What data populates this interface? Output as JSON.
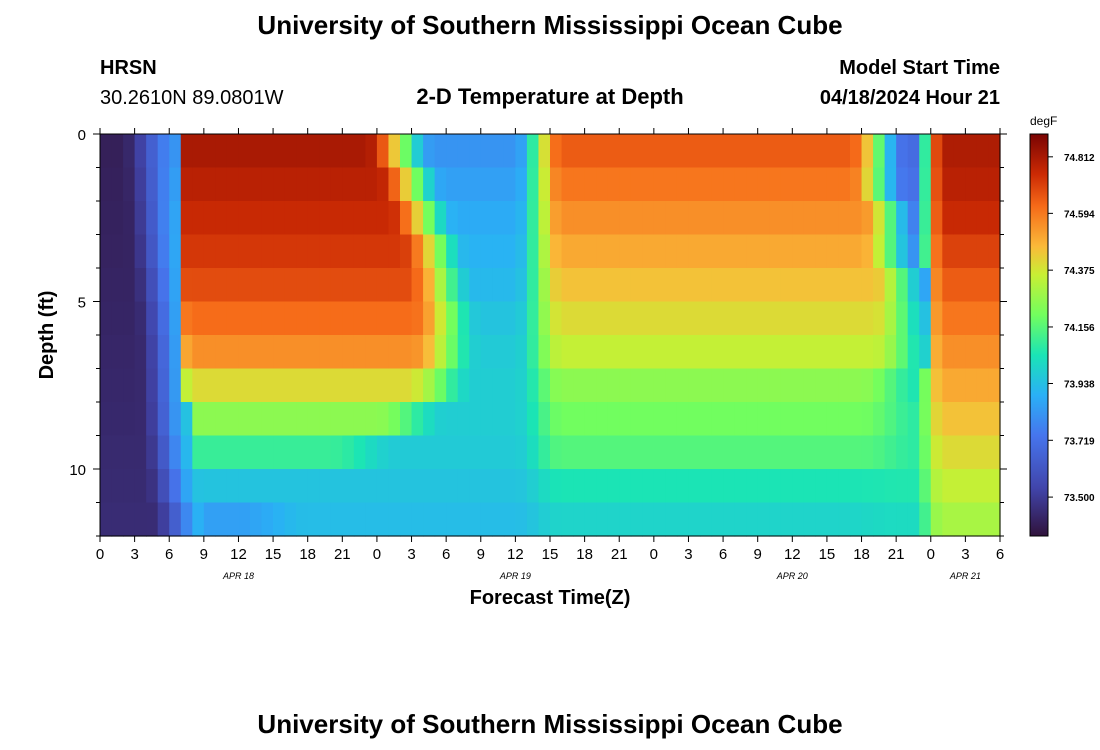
{
  "header": {
    "title": "University of Southern Mississippi Ocean Cube",
    "station": "HRSN",
    "coordinates": "30.2610N  89.0801W",
    "plot_title": "2-D Temperature at Depth",
    "model_start_label": "Model Start Time",
    "model_start_value": "04/18/2024 Hour 21"
  },
  "footer": {
    "title": "University of Southern Mississippi Ocean Cube"
  },
  "chart_data": {
    "type": "heatmap",
    "title": "2-D Temperature at Depth",
    "xlabel": "Forecast Time(Z)",
    "ylabel": "Depth (ft)",
    "x_range_hours": [
      0,
      78
    ],
    "x_tick_labels": [
      "0",
      "3",
      "6",
      "9",
      "12",
      "15",
      "18",
      "21",
      "0",
      "3",
      "6",
      "9",
      "12",
      "15",
      "18",
      "21",
      "0",
      "3",
      "6",
      "9",
      "12",
      "15",
      "18",
      "21",
      "0",
      "3",
      "6"
    ],
    "date_labels": [
      {
        "label": "APR 18",
        "hour": 12
      },
      {
        "label": "APR 19",
        "hour": 36
      },
      {
        "label": "APR 20",
        "hour": 60
      },
      {
        "label": "APR 21",
        "hour": 75
      }
    ],
    "y_range_ft": [
      0,
      12
    ],
    "y_tick_labels": [
      "0",
      "5",
      "10"
    ],
    "y_tick_values": [
      0,
      5,
      10
    ],
    "colorbar": {
      "unit": "degF",
      "range": [
        73.35,
        74.9
      ],
      "tick_values": [
        74.812,
        74.594,
        74.375,
        74.156,
        73.938,
        73.719,
        73.5
      ],
      "tick_labels": [
        "74.812",
        "74.594",
        "74.375",
        "74.156",
        "73.938",
        "73.719",
        "73.500"
      ]
    },
    "depth_levels_ft": [
      0.5,
      1.5,
      2.5,
      3.5,
      4.5,
      5.5,
      6.5,
      7.5,
      8.5,
      9.5,
      10.5,
      11.5
    ],
    "cold_edge_hour": [
      6.7,
      6.9,
      7.1,
      7.3,
      7.6,
      7.9,
      8.1,
      8.2,
      8.3,
      8.5,
      8.8,
      9.3
    ],
    "warm_band_1_hours": [
      [
        7.5,
        23
      ],
      [
        7.5,
        24
      ],
      [
        7.5,
        25
      ],
      [
        7.5,
        26
      ],
      [
        7.5,
        26.5
      ],
      [
        7.5,
        27
      ],
      [
        7.5,
        27
      ],
      [
        7.5,
        26.5
      ],
      [
        8,
        24
      ],
      [
        8,
        20
      ],
      [
        9,
        15
      ],
      [
        9,
        12
      ]
    ],
    "warm_band_1_peak": [
      74.81,
      74.78,
      74.75,
      74.72,
      74.68,
      74.62,
      74.55,
      74.4,
      74.25,
      74.1,
      73.95,
      73.85
    ],
    "warm_band_2_hours": [
      [
        40,
        65
      ],
      [
        40,
        65
      ],
      [
        40,
        66
      ],
      [
        40,
        66
      ],
      [
        40,
        67
      ],
      [
        40,
        67
      ],
      [
        40,
        67
      ],
      [
        40,
        66
      ],
      [
        40,
        66
      ],
      [
        40,
        66
      ],
      [
        40,
        65
      ],
      [
        40,
        64
      ]
    ],
    "warm_band_2_peak": [
      74.65,
      74.6,
      74.55,
      74.5,
      74.45,
      74.4,
      74.35,
      74.25,
      74.2,
      74.15,
      74.05,
      74.0
    ],
    "cool_mid_values": [
      73.82,
      73.85,
      73.88,
      73.9,
      73.92,
      73.95,
      73.97,
      73.98,
      73.98,
      73.97,
      73.95,
      73.93
    ],
    "cool_late_values": [
      73.7,
      73.72,
      73.75,
      73.8,
      73.85,
      73.93,
      73.98,
      74.05,
      74.08,
      74.08,
      74.06,
      74.02
    ],
    "final_warm_values": [
      74.8,
      74.78,
      74.75,
      74.7,
      74.65,
      74.6,
      74.55,
      74.5,
      74.45,
      74.4,
      74.35,
      74.3
    ]
  }
}
